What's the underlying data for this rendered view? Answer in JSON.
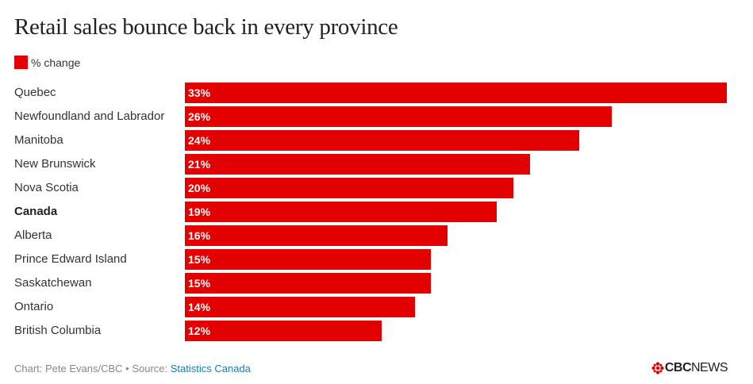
{
  "title": "Retail sales bounce back in every province",
  "legend": {
    "label": "% change",
    "color": "#e30000"
  },
  "chart_data": {
    "type": "bar",
    "orientation": "horizontal",
    "categories": [
      "Quebec",
      "Newfoundland and Labrador",
      "Manitoba",
      "New Brunswick",
      "Nova Scotia",
      "Canada",
      "Alberta",
      "Prince Edward Island",
      "Saskatchewan",
      "Ontario",
      "British Columbia"
    ],
    "values": [
      33,
      26,
      24,
      21,
      20,
      19,
      16,
      15,
      15,
      14,
      12
    ],
    "value_labels": [
      "33%",
      "26%",
      "24%",
      "21%",
      "20%",
      "19%",
      "16%",
      "15%",
      "15%",
      "14%",
      "12%"
    ],
    "highlight": "Canada",
    "series": [
      {
        "name": "% change",
        "values": [
          33,
          26,
          24,
          21,
          20,
          19,
          16,
          15,
          15,
          14,
          12
        ]
      }
    ],
    "xlim": [
      0,
      33
    ],
    "grid": false,
    "legend_position": "top-left",
    "color": "#e30000"
  },
  "footer": {
    "credit": "Chart: Pete Evans/CBC • Source: ",
    "source": "Statistics Canada"
  },
  "logo": {
    "text_bold": "CBC",
    "text_thin": "NEWS"
  }
}
